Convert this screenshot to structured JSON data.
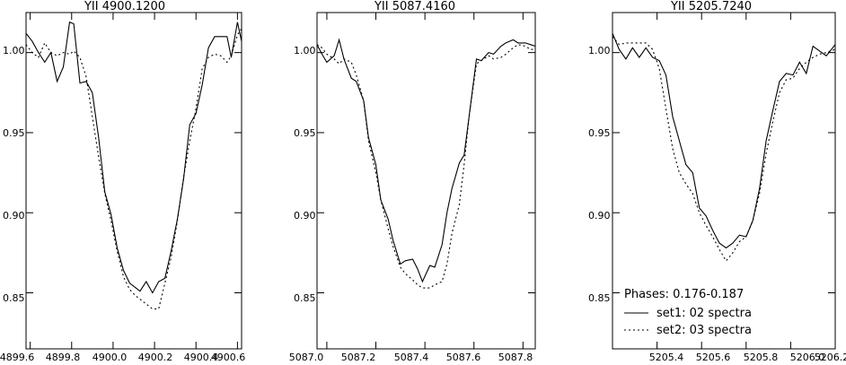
{
  "chart_data": [
    {
      "type": "line",
      "title": "YII 4900.1200",
      "xlim": [
        4899.58,
        4900.62
      ],
      "ylim": [
        0.815,
        1.025
      ],
      "xticks": [
        4899.6,
        4899.8,
        4900.0,
        4900.2,
        4900.4,
        4900.6
      ],
      "xtick_labels": [
        "4899.6",
        "4899.8",
        "4900.0",
        "4900.2",
        "4900.4",
        "4900.6"
      ],
      "yticks": [
        0.85,
        0.9,
        0.95,
        1.0
      ],
      "ytick_labels": [
        "0.85",
        "0.90",
        "0.95",
        "1.00"
      ],
      "series": [
        {
          "style": "solid",
          "x": [
            4899.58,
            4899.61,
            4899.64,
            4899.67,
            4899.7,
            4899.73,
            4899.76,
            4899.79,
            4899.81,
            4899.84,
            4899.87,
            4899.9,
            4899.93,
            4899.96,
            4899.99,
            4900.02,
            4900.05,
            4900.08,
            4900.11,
            4900.13,
            4900.16,
            4900.19,
            4900.22,
            4900.25,
            4900.28,
            4900.31,
            4900.34,
            4900.37,
            4900.4,
            4900.43,
            4900.46,
            4900.49,
            4900.52,
            4900.55,
            4900.57,
            4900.6,
            4900.62
          ],
          "values": [
            1.012,
            1.007,
            1.0,
            0.994,
            1.0,
            0.982,
            0.991,
            1.019,
            1.018,
            0.981,
            0.982,
            0.975,
            0.947,
            0.913,
            0.899,
            0.878,
            0.864,
            0.856,
            0.853,
            0.851,
            0.857,
            0.85,
            0.857,
            0.859,
            0.876,
            0.896,
            0.921,
            0.955,
            0.962,
            0.98,
            1.003,
            1.01,
            1.01,
            1.01,
            0.997,
            1.019,
            1.007
          ]
        },
        {
          "style": "dashed",
          "x": [
            4899.58,
            4899.61,
            4899.64,
            4899.67,
            4899.7,
            4899.73,
            4899.76,
            4899.79,
            4899.81,
            4899.84,
            4899.87,
            4899.9,
            4899.93,
            4899.96,
            4899.99,
            4900.02,
            4900.05,
            4900.08,
            4900.11,
            4900.13,
            4900.16,
            4900.19,
            4900.22,
            4900.25,
            4900.28,
            4900.31,
            4900.34,
            4900.37,
            4900.4,
            4900.43,
            4900.46,
            4900.49,
            4900.52,
            4900.55,
            4900.57,
            4900.6,
            4900.62
          ],
          "values": [
            1.005,
            1.0,
            0.997,
            1.006,
            1.0,
            0.998,
            1.0,
            0.999,
            1.001,
            0.997,
            0.985,
            0.96,
            0.935,
            0.912,
            0.895,
            0.876,
            0.86,
            0.852,
            0.848,
            0.846,
            0.843,
            0.84,
            0.84,
            0.856,
            0.872,
            0.895,
            0.922,
            0.945,
            0.965,
            0.99,
            0.997,
            0.999,
            0.998,
            0.994,
            0.998,
            1.011,
            1.015
          ]
        }
      ]
    },
    {
      "type": "line",
      "title": "YII 5087.4160",
      "xlim": [
        5086.96,
        5087.85
      ],
      "ylim": [
        0.815,
        1.025
      ],
      "xticks": [
        5087.0,
        5087.2,
        5087.4,
        5087.6,
        5087.8
      ],
      "xtick_labels": [
        "5087.0",
        "5087.2",
        "5087.4",
        "5087.6",
        "5087.8"
      ],
      "yticks": [
        0.85,
        0.9,
        0.95,
        1.0
      ],
      "ytick_labels": [
        "0.85",
        "0.90",
        "0.95",
        "1.00"
      ],
      "series": [
        {
          "style": "solid",
          "x": [
            5086.96,
            5086.98,
            5087.0,
            5087.03,
            5087.05,
            5087.07,
            5087.1,
            5087.12,
            5087.15,
            5087.17,
            5087.2,
            5087.22,
            5087.25,
            5087.27,
            5087.3,
            5087.32,
            5087.35,
            5087.37,
            5087.39,
            5087.42,
            5087.44,
            5087.47,
            5087.49,
            5087.51,
            5087.54,
            5087.56,
            5087.58,
            5087.61,
            5087.63,
            5087.66,
            5087.68,
            5087.71,
            5087.73,
            5087.76,
            5087.78,
            5087.81,
            5087.83,
            5087.85
          ],
          "values": [
            1.005,
            0.999,
            0.994,
            0.998,
            1.008,
            0.996,
            0.984,
            0.982,
            0.97,
            0.947,
            0.93,
            0.908,
            0.896,
            0.883,
            0.868,
            0.87,
            0.871,
            0.865,
            0.857,
            0.867,
            0.866,
            0.88,
            0.9,
            0.915,
            0.931,
            0.936,
            0.96,
            0.996,
            0.995,
            1.0,
            0.999,
            1.004,
            1.006,
            1.008,
            1.006,
            1.006,
            1.005,
            1.004
          ]
        },
        {
          "style": "dashed",
          "x": [
            5086.96,
            5086.98,
            5087.0,
            5087.03,
            5087.05,
            5087.07,
            5087.1,
            5087.12,
            5087.15,
            5087.17,
            5087.2,
            5087.22,
            5087.25,
            5087.27,
            5087.3,
            5087.32,
            5087.35,
            5087.37,
            5087.39,
            5087.42,
            5087.44,
            5087.47,
            5087.49,
            5087.51,
            5087.54,
            5087.56,
            5087.58,
            5087.61,
            5087.63,
            5087.66,
            5087.68,
            5087.71,
            5087.73,
            5087.76,
            5087.78,
            5087.81,
            5087.83,
            5087.85
          ],
          "values": [
            1.005,
            1.003,
            0.999,
            0.996,
            0.993,
            0.996,
            0.994,
            0.986,
            0.97,
            0.945,
            0.925,
            0.908,
            0.89,
            0.879,
            0.866,
            0.862,
            0.858,
            0.855,
            0.853,
            0.853,
            0.855,
            0.857,
            0.868,
            0.887,
            0.905,
            0.93,
            0.96,
            0.993,
            0.995,
            0.998,
            0.996,
            0.997,
            0.999,
            1.003,
            1.005,
            1.004,
            1.002,
            1.002
          ]
        }
      ]
    },
    {
      "type": "line",
      "title": "YII 5205.7240",
      "xlim": [
        5205.2,
        5206.2
      ],
      "ylim": [
        0.815,
        1.025
      ],
      "xticks": [
        5205.4,
        5205.6,
        5205.8,
        5206.0,
        5206.2
      ],
      "xtick_labels": [
        "5205.4",
        "5205.6",
        "5205.8",
        "5206.0",
        "5206.2"
      ],
      "yticks": [
        0.85,
        0.9,
        0.95,
        1.0
      ],
      "ytick_labels": [
        "0.85",
        "0.90",
        "0.95",
        "1.00"
      ],
      "series": [
        {
          "name": "set1: 02 spectra",
          "style": "solid",
          "x": [
            5205.2,
            5205.23,
            5205.26,
            5205.29,
            5205.32,
            5205.35,
            5205.38,
            5205.41,
            5205.44,
            5205.47,
            5205.5,
            5205.53,
            5205.56,
            5205.59,
            5205.62,
            5205.65,
            5205.68,
            5205.71,
            5205.74,
            5205.77,
            5205.8,
            5205.83,
            5205.86,
            5205.89,
            5205.92,
            5205.95,
            5205.98,
            5206.01,
            5206.04,
            5206.07,
            5206.1,
            5206.13,
            5206.16,
            5206.2
          ],
          "values": [
            1.012,
            1.002,
            0.996,
            1.003,
            0.997,
            1.003,
            0.997,
            0.995,
            0.986,
            0.96,
            0.945,
            0.93,
            0.925,
            0.903,
            0.898,
            0.889,
            0.881,
            0.878,
            0.881,
            0.886,
            0.885,
            0.895,
            0.915,
            0.945,
            0.964,
            0.982,
            0.987,
            0.986,
            0.994,
            0.987,
            1.004,
            1.001,
            0.998,
            1.005
          ]
        },
        {
          "name": "set2: 03 spectra",
          "style": "dashed",
          "x": [
            5205.2,
            5205.23,
            5205.26,
            5205.29,
            5205.32,
            5205.35,
            5205.38,
            5205.41,
            5205.44,
            5205.47,
            5205.5,
            5205.53,
            5205.56,
            5205.59,
            5205.62,
            5205.65,
            5205.68,
            5205.71,
            5205.74,
            5205.77,
            5205.8,
            5205.83,
            5205.86,
            5205.89,
            5205.92,
            5205.95,
            5205.98,
            5206.01,
            5206.04,
            5206.07,
            5206.1,
            5206.13,
            5206.16,
            5206.2
          ],
          "values": [
            1.01,
            1.005,
            1.006,
            1.006,
            1.006,
            1.006,
            1.002,
            0.99,
            0.965,
            0.94,
            0.925,
            0.918,
            0.912,
            0.9,
            0.892,
            0.885,
            0.877,
            0.87,
            0.875,
            0.882,
            0.885,
            0.895,
            0.912,
            0.937,
            0.957,
            0.975,
            0.983,
            0.984,
            0.99,
            0.994,
            0.997,
            0.999,
            1.0,
            1.002
          ]
        }
      ],
      "annotation": "Phases: 0.176-0.187",
      "legend": [
        {
          "label": "set1: 02 spectra",
          "style": "solid"
        },
        {
          "label": "set2: 03 spectra",
          "style": "dashed"
        }
      ]
    }
  ]
}
